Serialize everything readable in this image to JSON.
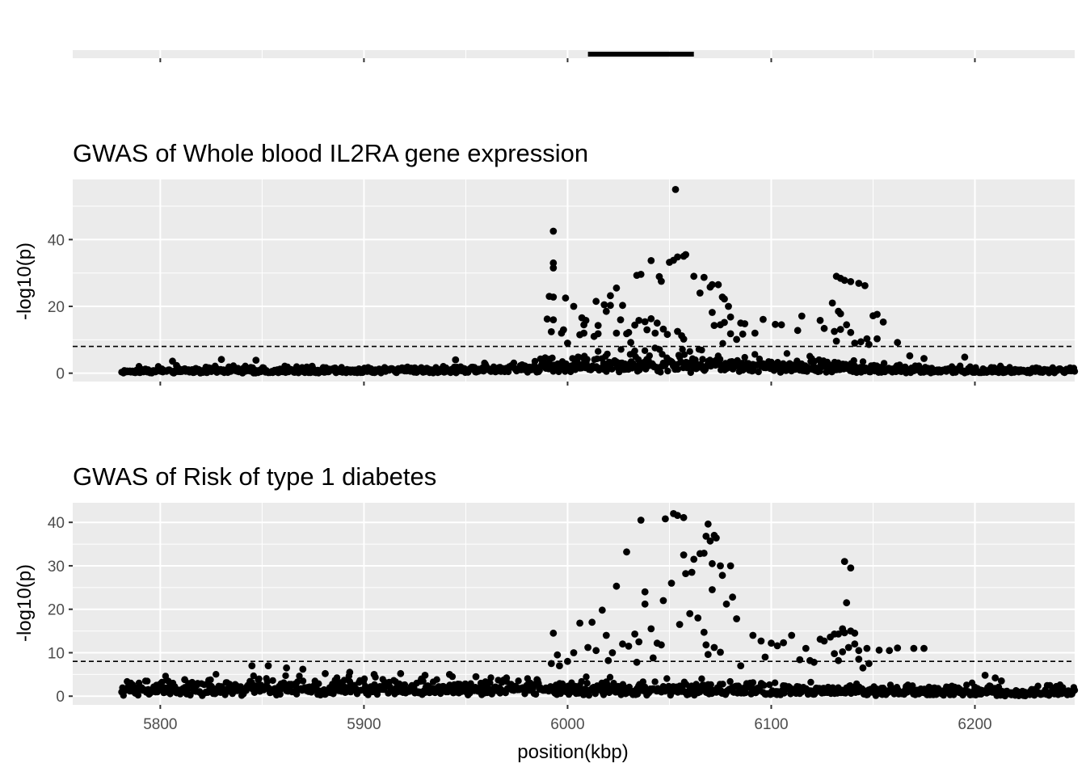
{
  "chart_data": [
    {
      "type": "gene_track",
      "xlim": [
        5757,
        6249
      ],
      "x_ticks": [
        5800,
        5900,
        6000,
        6100,
        6200
      ],
      "gene": {
        "start": 6010,
        "end": 6062
      },
      "colors": {
        "panel": "#EBEBEB",
        "gene": "#000000"
      }
    },
    {
      "type": "scatter",
      "title": "GWAS of Whole blood IL2RA gene expression",
      "xlabel": "",
      "ylabel": "-log10(p)",
      "xlim": [
        5757,
        6249
      ],
      "ylim": [
        -2.5,
        58
      ],
      "x_ticks": [
        5800,
        5900,
        6000,
        6100,
        6200
      ],
      "y_ticks": [
        0,
        20,
        40
      ],
      "y_tick_labels": [
        "0",
        "20",
        "40"
      ],
      "threshold": 8,
      "x_range": [
        5781,
        6249
      ],
      "noise_max": 1.5,
      "peak": {
        "center": 6060,
        "sigma": 55,
        "height": 7.5
      },
      "highlights": [
        [
          5806,
          3.6
        ],
        [
          5808,
          2.3
        ],
        [
          5830,
          4.1
        ],
        [
          5847,
          3.9
        ],
        [
          5945,
          4.0
        ],
        [
          5979,
          2.2
        ],
        [
          5989,
          4.6
        ],
        [
          5993,
          42.5
        ],
        [
          5993,
          33
        ],
        [
          5993,
          31.5
        ],
        [
          5991,
          23
        ],
        [
          5993,
          22.8
        ],
        [
          5990,
          16.2
        ],
        [
          5993,
          16
        ],
        [
          5999,
          22.5
        ],
        [
          5998,
          13
        ],
        [
          6000,
          9
        ],
        [
          5997,
          12
        ],
        [
          5992,
          12.4
        ],
        [
          6007,
          16.6
        ],
        [
          6003,
          20
        ],
        [
          6009,
          15.8
        ],
        [
          6008,
          12
        ],
        [
          6008,
          14.5
        ],
        [
          6006,
          11.5
        ],
        [
          6015,
          14.3
        ],
        [
          6015,
          11.8
        ],
        [
          6018,
          20.5
        ],
        [
          6014,
          21.5
        ],
        [
          6013,
          11
        ],
        [
          6021,
          23.2
        ],
        [
          6021,
          20.3
        ],
        [
          6019,
          18.5
        ],
        [
          6027,
          20.3
        ],
        [
          6026,
          16
        ],
        [
          6024,
          12
        ],
        [
          6024,
          25.5
        ],
        [
          6030,
          12.2
        ],
        [
          6031,
          9.2
        ],
        [
          6029,
          11.8
        ],
        [
          6035,
          15.8
        ],
        [
          6033,
          14.4
        ],
        [
          6038,
          15.4
        ],
        [
          6041,
          16.3
        ],
        [
          6039,
          13
        ],
        [
          6044,
          15
        ],
        [
          6043,
          12
        ],
        [
          6047,
          13.2
        ],
        [
          6049,
          11.6
        ],
        [
          6054,
          12.5
        ],
        [
          6056,
          11.2
        ],
        [
          6057,
          10.2
        ],
        [
          6036,
          29.6
        ],
        [
          6034,
          29.3
        ],
        [
          6041,
          33.7
        ],
        [
          6045,
          28.9
        ],
        [
          6046,
          27.5
        ],
        [
          6050,
          33.2
        ],
        [
          6052,
          33.8
        ],
        [
          6053,
          55
        ],
        [
          6054,
          34.8
        ],
        [
          6057,
          35
        ],
        [
          6058,
          35.5
        ],
        [
          6065,
          24
        ],
        [
          6062,
          29
        ],
        [
          6067,
          28.7
        ],
        [
          6070,
          25.8
        ],
        [
          6071,
          26.5
        ],
        [
          6074,
          26.5
        ],
        [
          6076,
          22.8
        ],
        [
          6077,
          22.2
        ],
        [
          6079,
          20
        ],
        [
          6080,
          16.8
        ],
        [
          6071,
          18.2
        ],
        [
          6072,
          14.3
        ],
        [
          6075,
          14.5
        ],
        [
          6077,
          15.2
        ],
        [
          6080,
          11.8
        ],
        [
          6083,
          10.1
        ],
        [
          6086,
          11.7
        ],
        [
          6085,
          15
        ],
        [
          6087,
          14.8
        ],
        [
          6092,
          12
        ],
        [
          6096,
          16.1
        ],
        [
          6102,
          14.6
        ],
        [
          6105,
          14.5
        ],
        [
          6113,
          12.8
        ],
        [
          6115,
          17.1
        ],
        [
          6124,
          15.8
        ],
        [
          6126,
          13.4
        ],
        [
          6130,
          21
        ],
        [
          6133,
          18.5
        ],
        [
          6134,
          17.8
        ],
        [
          6132,
          29
        ],
        [
          6134,
          28.4
        ],
        [
          6136,
          27.8
        ],
        [
          6139,
          27.4
        ],
        [
          6143,
          26.9
        ],
        [
          6146,
          26.2
        ],
        [
          6150,
          17.2
        ],
        [
          6152,
          17.6
        ],
        [
          6155,
          15.3
        ],
        [
          6131,
          12.5
        ],
        [
          6132,
          9.6
        ],
        [
          6134,
          13.1
        ],
        [
          6137,
          14.5
        ],
        [
          6139,
          12.2
        ],
        [
          6141,
          9
        ],
        [
          6144,
          9.4
        ],
        [
          6147,
          10.3
        ],
        [
          6148,
          8.6
        ],
        [
          6152,
          10.3
        ],
        [
          6162,
          9.2
        ],
        [
          6168,
          5.2
        ],
        [
          6175,
          4.4
        ],
        [
          6195,
          4.8
        ]
      ]
    },
    {
      "type": "scatter",
      "title": "GWAS of Risk of type 1 diabetes",
      "xlabel": "position(kbp)",
      "ylabel": "-log10(p)",
      "xlim": [
        5757,
        6249
      ],
      "ylim": [
        -2.0,
        44.5
      ],
      "x_ticks": [
        5800,
        5900,
        6000,
        6100,
        6200
      ],
      "x_tick_labels": [
        "5800",
        "5900",
        "6000",
        "6100",
        "6200"
      ],
      "y_ticks": [
        0,
        10,
        20,
        30,
        40
      ],
      "y_tick_labels": [
        "0",
        "10",
        "20",
        "30",
        "40"
      ],
      "threshold": 8,
      "x_range": [
        5781,
        6249
      ],
      "noise_max": 1.8,
      "peak": {
        "center": 5900,
        "sigma": 160,
        "height": 3.5
      },
      "highlights": [
        [
          5812,
          3.8
        ],
        [
          5845,
          7.0
        ],
        [
          5853,
          7.0
        ],
        [
          5862,
          6.5
        ],
        [
          5870,
          6.2
        ],
        [
          5881,
          5.2
        ],
        [
          5893,
          5.5
        ],
        [
          5905,
          5.0
        ],
        [
          5918,
          5.2
        ],
        [
          5930,
          4.8
        ],
        [
          5942,
          5.0
        ],
        [
          5955,
          4.5
        ],
        [
          5970,
          4.2
        ],
        [
          5985,
          3.8
        ],
        [
          5993,
          14.5
        ],
        [
          5995,
          9.5
        ],
        [
          5992,
          7.5
        ],
        [
          5996,
          7.0
        ],
        [
          6000,
          8
        ],
        [
          6003,
          10
        ],
        [
          6006,
          16.8
        ],
        [
          6010,
          11.2
        ],
        [
          6012,
          17
        ],
        [
          6014,
          10.5
        ],
        [
          6017,
          19.8
        ],
        [
          6019,
          14
        ],
        [
          6022,
          10
        ],
        [
          6024,
          25.3
        ],
        [
          6020,
          8.2
        ],
        [
          6027,
          12
        ],
        [
          6029,
          33.2
        ],
        [
          6030,
          11.5
        ],
        [
          6033,
          14.3
        ],
        [
          6035,
          12.5
        ],
        [
          6034,
          7.8
        ],
        [
          6036,
          40.5
        ],
        [
          6038,
          24
        ],
        [
          6038,
          21.2
        ],
        [
          6041,
          15.5
        ],
        [
          6042,
          8.8
        ],
        [
          6044,
          12.2
        ],
        [
          6046,
          11.8
        ],
        [
          6047,
          22
        ],
        [
          6048,
          40.8
        ],
        [
          6051,
          26
        ],
        [
          6052,
          42
        ],
        [
          6054,
          41.6
        ],
        [
          6055,
          16.5
        ],
        [
          6057,
          41.1
        ],
        [
          6057,
          32.5
        ],
        [
          6058,
          28.2
        ],
        [
          6060,
          19
        ],
        [
          6061,
          28.5
        ],
        [
          6062,
          31.5
        ],
        [
          6064,
          18
        ],
        [
          6065,
          32.8
        ],
        [
          6067,
          32.9
        ],
        [
          6068,
          36.8
        ],
        [
          6069,
          39.6
        ],
        [
          6070,
          35.7
        ],
        [
          6071,
          30.5
        ],
        [
          6071,
          24.5
        ],
        [
          6073,
          36.4
        ],
        [
          6072,
          37
        ],
        [
          6075,
          30
        ],
        [
          6076,
          27.8
        ],
        [
          6078,
          21.2
        ],
        [
          6080,
          30
        ],
        [
          6081,
          22.8
        ],
        [
          6083,
          17.8
        ],
        [
          6067,
          14.7
        ],
        [
          6068,
          11.8
        ],
        [
          6069,
          9.6
        ],
        [
          6072,
          11.2
        ],
        [
          6075,
          10.1
        ],
        [
          6085,
          7
        ],
        [
          6091,
          14
        ],
        [
          6095,
          12.7
        ],
        [
          6097,
          9
        ],
        [
          6100,
          12.2
        ],
        [
          6103,
          11.6
        ],
        [
          6106,
          12.3
        ],
        [
          6110,
          14
        ],
        [
          6114,
          8.4
        ],
        [
          6117,
          11
        ],
        [
          6119,
          8.2
        ],
        [
          6121,
          7.8
        ],
        [
          6124,
          13.1
        ],
        [
          6126,
          12.7
        ],
        [
          6129,
          13.6
        ],
        [
          6131,
          14.3
        ],
        [
          6133,
          14.3
        ],
        [
          6135,
          15.5
        ],
        [
          6136,
          14.6
        ],
        [
          6137,
          21.5
        ],
        [
          6136,
          31
        ],
        [
          6139,
          29.5
        ],
        [
          6139,
          15
        ],
        [
          6141,
          14.5
        ],
        [
          6131,
          9.8
        ],
        [
          6133,
          8.2
        ],
        [
          6135,
          10.2
        ],
        [
          6138,
          11.2
        ],
        [
          6141,
          12
        ],
        [
          6143,
          10.5
        ],
        [
          6147,
          11
        ],
        [
          6153,
          10.6
        ],
        [
          6158,
          10.5
        ],
        [
          6162,
          11.1
        ],
        [
          6170,
          11
        ],
        [
          6175,
          11
        ],
        [
          6143,
          8.5
        ],
        [
          6145,
          6.5
        ],
        [
          6148,
          7.5
        ],
        [
          6205,
          4.8
        ],
        [
          6210,
          4.2
        ],
        [
          6213,
          3.5
        ]
      ]
    }
  ]
}
